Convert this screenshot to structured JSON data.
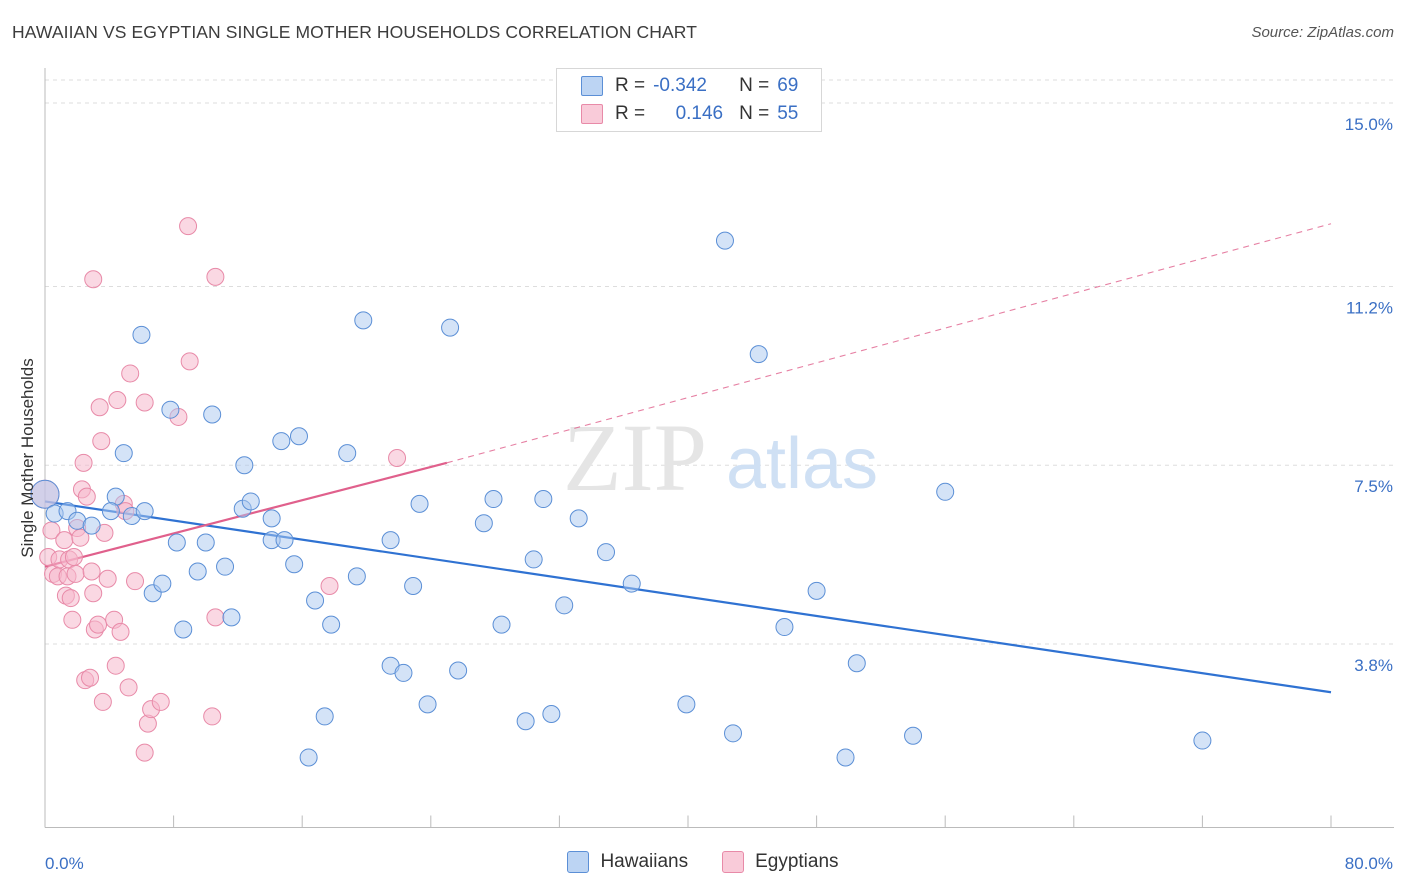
{
  "title": "HAWAIIAN VS EGYPTIAN SINGLE MOTHER HOUSEHOLDS CORRELATION CHART",
  "source": "Source: ZipAtlas.com",
  "watermark": {
    "zip": "ZIP",
    "atlas": "atlas"
  },
  "legend_top": [
    {
      "r_label": "R =",
      "r_value": "-0.342",
      "n_label": "N =",
      "n_value": "69"
    },
    {
      "r_label": "R =",
      "r_value": "0.146",
      "n_label": "N =",
      "n_value": "55"
    }
  ],
  "colors": {
    "blue_fill": "#a9c8f0",
    "blue_stroke": "#5b8fd6",
    "blue_line": "#2f72d2",
    "pink_fill": "#f6b8cc",
    "pink_stroke": "#e88aa8",
    "pink_line": "#e0608c",
    "axis_label": "#3a6fc4",
    "grid": "#dddddd"
  },
  "chart_data": {
    "type": "scatter",
    "title": "HAWAIIAN VS EGYPTIAN SINGLE MOTHER HOUSEHOLDS CORRELATION CHART",
    "xlabel": "",
    "ylabel": "Single Mother Households",
    "xlim": [
      0,
      80
    ],
    "ylim": [
      0,
      15.6
    ],
    "x_tick_labels": [
      "0.0%",
      "80.0%"
    ],
    "y_ticks": [
      3.8,
      7.5,
      11.2,
      15.0
    ],
    "y_tick_labels": [
      "3.8%",
      "7.5%",
      "11.2%",
      "15.0%"
    ],
    "grid": "horizontal dashed",
    "legend_position": "top-center",
    "series": [
      {
        "name": "Hawaiians",
        "r": -0.342,
        "n": 69,
        "trend": {
          "x": [
            0,
            80
          ],
          "y": [
            6.75,
            2.8
          ],
          "style": "solid"
        },
        "points": [
          [
            0.0,
            6.9
          ],
          [
            0.6,
            6.5
          ],
          [
            1.4,
            6.55
          ],
          [
            2.0,
            6.35
          ],
          [
            2.9,
            6.25
          ],
          [
            4.4,
            6.85
          ],
          [
            4.9,
            7.75
          ],
          [
            4.1,
            6.55
          ],
          [
            5.4,
            6.45
          ],
          [
            6.2,
            6.55
          ],
          [
            6.0,
            10.2
          ],
          [
            7.8,
            8.65
          ],
          [
            6.7,
            4.85
          ],
          [
            7.3,
            5.05
          ],
          [
            8.2,
            5.9
          ],
          [
            8.6,
            4.1
          ],
          [
            9.5,
            5.3
          ],
          [
            10.0,
            5.9
          ],
          [
            10.4,
            8.55
          ],
          [
            11.2,
            5.4
          ],
          [
            11.6,
            4.35
          ],
          [
            12.3,
            6.6
          ],
          [
            12.4,
            7.5
          ],
          [
            12.8,
            6.75
          ],
          [
            14.1,
            6.4
          ],
          [
            14.1,
            5.95
          ],
          [
            14.9,
            5.95
          ],
          [
            14.7,
            8.0
          ],
          [
            15.5,
            5.45
          ],
          [
            15.8,
            8.1
          ],
          [
            16.4,
            1.45
          ],
          [
            16.8,
            4.7
          ],
          [
            17.4,
            2.3
          ],
          [
            17.8,
            4.2
          ],
          [
            18.8,
            7.75
          ],
          [
            19.4,
            5.2
          ],
          [
            19.8,
            10.5
          ],
          [
            21.5,
            3.35
          ],
          [
            21.5,
            5.95
          ],
          [
            22.3,
            3.2
          ],
          [
            22.9,
            5.0
          ],
          [
            23.3,
            6.7
          ],
          [
            23.8,
            2.55
          ],
          [
            25.2,
            10.35
          ],
          [
            25.7,
            3.25
          ],
          [
            27.3,
            6.3
          ],
          [
            27.9,
            6.8
          ],
          [
            28.4,
            4.2
          ],
          [
            29.9,
            2.2
          ],
          [
            30.4,
            5.55
          ],
          [
            31.0,
            6.8
          ],
          [
            31.5,
            2.35
          ],
          [
            32.3,
            4.6
          ],
          [
            33.2,
            6.4
          ],
          [
            34.9,
            5.7
          ],
          [
            36.5,
            5.05
          ],
          [
            39.9,
            2.55
          ],
          [
            42.3,
            12.15
          ],
          [
            42.8,
            1.95
          ],
          [
            44.4,
            9.8
          ],
          [
            46.0,
            4.15
          ],
          [
            48.0,
            4.9
          ],
          [
            49.8,
            1.45
          ],
          [
            50.5,
            3.4
          ],
          [
            54.0,
            1.9
          ],
          [
            56.0,
            6.95
          ],
          [
            72.0,
            1.8
          ]
        ]
      },
      {
        "name": "Egyptians",
        "r": 0.146,
        "n": 55,
        "trend": {
          "x_solid": [
            0,
            25
          ],
          "y_solid": [
            5.4,
            7.55
          ],
          "x_dash": [
            25,
            80
          ],
          "y_dash": [
            7.55,
            12.5
          ]
        },
        "points": [
          [
            0.0,
            6.9
          ],
          [
            0.2,
            5.6
          ],
          [
            0.4,
            6.15
          ],
          [
            0.5,
            5.25
          ],
          [
            0.8,
            5.2
          ],
          [
            0.9,
            5.55
          ],
          [
            1.2,
            5.95
          ],
          [
            1.3,
            4.8
          ],
          [
            1.4,
            5.2
          ],
          [
            1.5,
            5.55
          ],
          [
            1.6,
            4.75
          ],
          [
            1.7,
            4.3
          ],
          [
            1.8,
            5.6
          ],
          [
            1.9,
            5.25
          ],
          [
            2.0,
            6.2
          ],
          [
            2.2,
            6.0
          ],
          [
            2.3,
            7.0
          ],
          [
            2.4,
            7.55
          ],
          [
            2.5,
            3.05
          ],
          [
            2.6,
            6.85
          ],
          [
            2.8,
            3.1
          ],
          [
            2.9,
            5.3
          ],
          [
            3.0,
            4.85
          ],
          [
            3.1,
            4.1
          ],
          [
            3.0,
            11.35
          ],
          [
            3.3,
            4.2
          ],
          [
            3.4,
            8.7
          ],
          [
            3.5,
            8.0
          ],
          [
            3.6,
            2.6
          ],
          [
            3.7,
            6.1
          ],
          [
            3.9,
            5.15
          ],
          [
            4.3,
            4.3
          ],
          [
            4.4,
            3.35
          ],
          [
            4.5,
            8.85
          ],
          [
            4.7,
            4.05
          ],
          [
            4.9,
            6.7
          ],
          [
            5.0,
            6.55
          ],
          [
            5.2,
            2.9
          ],
          [
            5.3,
            9.4
          ],
          [
            5.6,
            5.1
          ],
          [
            6.2,
            1.55
          ],
          [
            6.2,
            8.8
          ],
          [
            6.4,
            2.15
          ],
          [
            6.6,
            2.45
          ],
          [
            7.2,
            2.6
          ],
          [
            8.3,
            8.5
          ],
          [
            8.9,
            12.45
          ],
          [
            9.0,
            9.65
          ],
          [
            10.4,
            2.3
          ],
          [
            10.6,
            11.4
          ],
          [
            10.6,
            4.35
          ],
          [
            17.7,
            5.0
          ],
          [
            21.9,
            7.65
          ]
        ]
      }
    ]
  }
}
